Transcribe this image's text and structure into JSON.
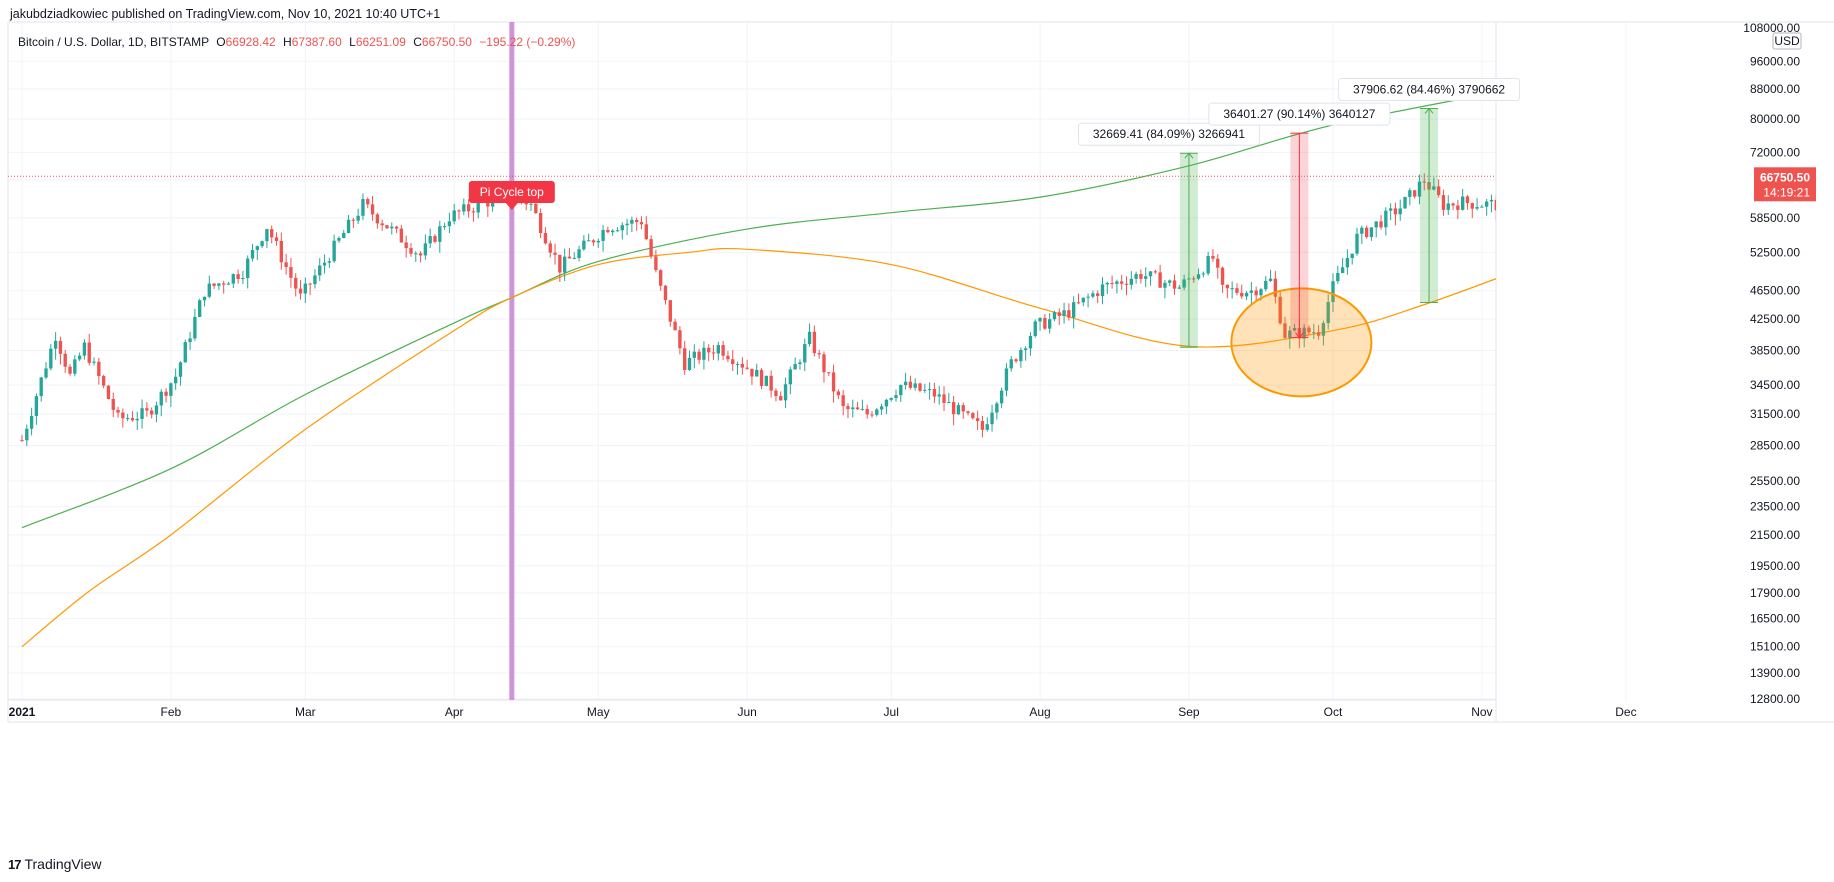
{
  "header": {
    "published_by": "jakubdziadkowiec published on TradingView.com, Nov 10, 2021 10:40 UTC+1",
    "symbol": "Bitcoin / U.S. Dollar, 1D, BITSTAMP",
    "open_label": "O",
    "open": "66928.42",
    "high_label": "H",
    "high": "67387.60",
    "low_label": "L",
    "low": "66251.09",
    "close_label": "C",
    "close": "66750.50",
    "change": "−195.22 (−0.29%)"
  },
  "footer": {
    "brand": "TradingView",
    "logo": "17"
  },
  "price_axis": {
    "currency": "USD",
    "current_price": "66750.50",
    "countdown": "14:19:21",
    "top_label": "108000.00"
  },
  "colors": {
    "up": "#26a69a",
    "down": "#ef5350",
    "ma_green": "#4caf50",
    "ma_orange": "#ff9800",
    "pi_marker": "#ce93d8",
    "annotation_red": "#f23645"
  },
  "chart_data": {
    "type": "candlestick",
    "title": "Bitcoin / U.S. Dollar, 1D, BITSTAMP",
    "scale": "log",
    "ylim": [
      12800,
      108000
    ],
    "xlim": [
      "2021-01-01",
      "2021-12-31"
    ],
    "y_ticks": [
      12800,
      13900,
      15100,
      16500,
      17900,
      19500,
      21500,
      23500,
      25500,
      28500,
      31500,
      34500,
      38500,
      42500,
      46500,
      52500,
      58500,
      66000,
      72000,
      80000,
      88000,
      96000
    ],
    "y_tick_labels": [
      "12800.00",
      "13900.00",
      "15100.00",
      "16500.00",
      "17900.00",
      "19500.00",
      "21500.00",
      "23500.00",
      "25500.00",
      "28500.00",
      "31500.00",
      "34500.00",
      "38500.00",
      "42500.00",
      "46500.00",
      "52500.00",
      "58500.00",
      "",
      "72000.00",
      "80000.00",
      "88000.00",
      "96000.00"
    ],
    "x_ticks": [
      {
        "date": "2021-01-01",
        "label": "2021"
      },
      {
        "date": "2021-02-01",
        "label": "Feb"
      },
      {
        "date": "2021-03-01",
        "label": "Mar"
      },
      {
        "date": "2021-04-01",
        "label": "Apr"
      },
      {
        "date": "2021-05-01",
        "label": "May"
      },
      {
        "date": "2021-06-01",
        "label": "Jun"
      },
      {
        "date": "2021-07-01",
        "label": "Jul"
      },
      {
        "date": "2021-08-01",
        "label": "Aug"
      },
      {
        "date": "2021-09-01",
        "label": "Sep"
      },
      {
        "date": "2021-10-01",
        "label": "Oct"
      },
      {
        "date": "2021-11-01",
        "label": "Nov"
      },
      {
        "date": "2021-12-01",
        "label": "Dec"
      }
    ],
    "price_path": [
      [
        "2021-01-01",
        29000
      ],
      [
        "2021-01-08",
        40500
      ],
      [
        "2021-01-11",
        35500
      ],
      [
        "2021-01-14",
        39000
      ],
      [
        "2021-01-21",
        31000
      ],
      [
        "2021-01-27",
        31500
      ],
      [
        "2021-02-02",
        35500
      ],
      [
        "2021-02-08",
        46500
      ],
      [
        "2021-02-16",
        49500
      ],
      [
        "2021-02-21",
        57000
      ],
      [
        "2021-02-28",
        45500
      ],
      [
        "2021-03-13",
        61000
      ],
      [
        "2021-03-25",
        52000
      ],
      [
        "2021-03-31",
        58800
      ],
      [
        "2021-04-13",
        63500
      ],
      [
        "2021-04-17",
        61000
      ],
      [
        "2021-04-23",
        50000
      ],
      [
        "2021-05-03",
        57000
      ],
      [
        "2021-05-10",
        58000
      ],
      [
        "2021-05-13",
        49000
      ],
      [
        "2021-05-19",
        37000
      ],
      [
        "2021-05-26",
        39000
      ],
      [
        "2021-06-01",
        36500
      ],
      [
        "2021-06-08",
        33500
      ],
      [
        "2021-06-14",
        40000
      ],
      [
        "2021-06-21",
        32000
      ],
      [
        "2021-06-26",
        31500
      ],
      [
        "2021-07-03",
        34500
      ],
      [
        "2021-07-10",
        33500
      ],
      [
        "2021-07-20",
        30000
      ],
      [
        "2021-07-26",
        37000
      ],
      [
        "2021-07-31",
        41500
      ],
      [
        "2021-08-07",
        43500
      ],
      [
        "2021-08-14",
        47000
      ],
      [
        "2021-08-22",
        49000
      ],
      [
        "2021-08-30",
        47000
      ],
      [
        "2021-09-06",
        51500
      ],
      [
        "2021-09-08",
        46500
      ],
      [
        "2021-09-14",
        46500
      ],
      [
        "2021-09-18",
        48000
      ],
      [
        "2021-09-21",
        40500
      ],
      [
        "2021-09-28",
        41000
      ],
      [
        "2021-10-01",
        47000
      ],
      [
        "2021-10-06",
        55000
      ],
      [
        "2021-10-15",
        60500
      ],
      [
        "2021-10-20",
        66000
      ],
      [
        "2021-10-24",
        61000
      ],
      [
        "2021-10-28",
        61500
      ],
      [
        "2021-11-01",
        61200
      ],
      [
        "2021-11-05",
        61000
      ],
      [
        "2021-11-08",
        67500
      ],
      [
        "2021-11-10",
        66750
      ]
    ],
    "series": [
      {
        "name": "",
        "color": "#4caf50",
        "points": [
          [
            "2021-01-01",
            22000
          ],
          [
            "2021-02-01",
            26500
          ],
          [
            "2021-03-01",
            33500
          ],
          [
            "2021-04-01",
            42000
          ],
          [
            "2021-04-13",
            45500
          ],
          [
            "2021-05-01",
            51000
          ],
          [
            "2021-06-01",
            56500
          ],
          [
            "2021-07-01",
            59500
          ],
          [
            "2021-08-01",
            62500
          ],
          [
            "2021-09-01",
            69000
          ],
          [
            "2021-10-01",
            78500
          ],
          [
            "2021-11-10",
            88500
          ]
        ]
      },
      {
        "name": "",
        "color": "#ff9800",
        "points": [
          [
            "2021-01-01",
            15100
          ],
          [
            "2021-01-15",
            18000
          ],
          [
            "2021-02-01",
            21500
          ],
          [
            "2021-03-01",
            30000
          ],
          [
            "2021-04-01",
            41000
          ],
          [
            "2021-04-13",
            45500
          ],
          [
            "2021-05-01",
            50500
          ],
          [
            "2021-05-20",
            52500
          ],
          [
            "2021-06-01",
            53000
          ],
          [
            "2021-07-01",
            50500
          ],
          [
            "2021-08-01",
            44000
          ],
          [
            "2021-09-01",
            39000
          ],
          [
            "2021-10-01",
            41000
          ],
          [
            "2021-10-20",
            44500
          ],
          [
            "2021-11-10",
            50000
          ]
        ]
      }
    ],
    "annotations": [
      {
        "type": "vline",
        "date": "2021-04-13",
        "label": "Pi Cycle top"
      },
      {
        "type": "range",
        "date": "2021-09-01",
        "from": 38900,
        "to": 71800,
        "label": "32669.41 (84.09%) 3266941",
        "direction": "up"
      },
      {
        "type": "range",
        "date": "2021-09-24",
        "from": 40100,
        "to": 76500,
        "label": "36401.27 (90.14%) 3640127",
        "direction": "down"
      },
      {
        "type": "range",
        "date": "2021-10-21",
        "from": 44800,
        "to": 82700,
        "label": "37906.62 (84.46%) 3790662",
        "direction": "up"
      },
      {
        "type": "ellipse",
        "date": "2021-09-24",
        "center": 39500
      }
    ],
    "last_price": 66750.5,
    "grid": true,
    "legend": "top-left"
  }
}
